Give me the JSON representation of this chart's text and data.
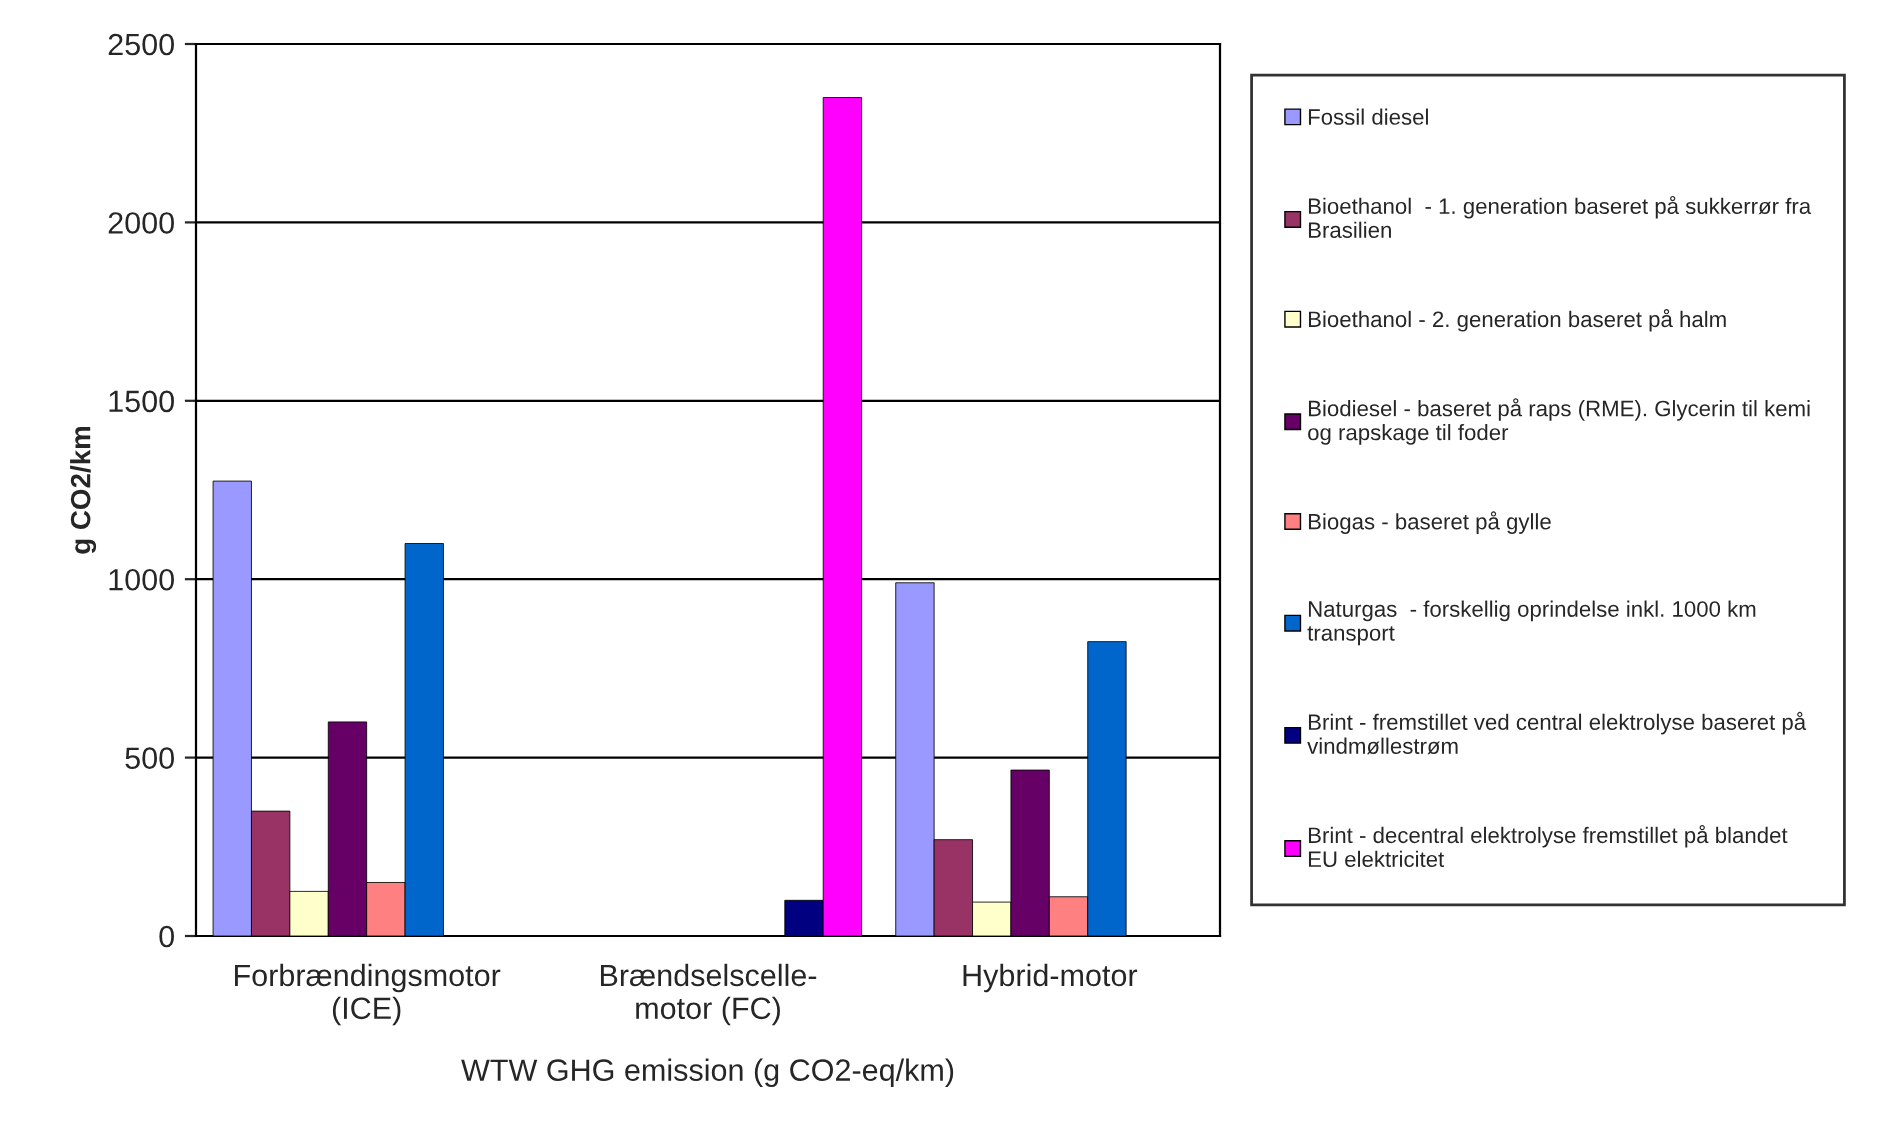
{
  "chart_data": {
    "type": "bar",
    "ylabel": "g CO2/km",
    "xlabel": "WTW GHG emission (g CO2-eq/km)",
    "categories": [
      "Forbrændingsmotor\n(ICE)",
      "Brændselscelle-\nmotor (FC)",
      "Hybrid-motor"
    ],
    "ylim": [
      0,
      2500
    ],
    "yticks": [
      0,
      500,
      1000,
      1500,
      2000,
      2500
    ],
    "grid": "y",
    "legend": "right",
    "series": [
      {
        "name": "Fossil diesel",
        "color": "#9999ff",
        "values": [
          1275,
          null,
          990
        ]
      },
      {
        "name": "Bioethanol  - 1. generation baseret på sukkerrør fra\nBrasilien",
        "color": "#993366",
        "values": [
          350,
          null,
          270
        ]
      },
      {
        "name": "Bioethanol - 2. generation baseret på halm",
        "color": "#ffffcc",
        "values": [
          125,
          null,
          95
        ]
      },
      {
        "name": "Biodiesel - baseret på raps (RME). Glycerin til kemi\nog rapskage til foder",
        "color": "#660066",
        "values": [
          600,
          null,
          465
        ]
      },
      {
        "name": "Biogas - baseret på gylle",
        "color": "#ff8080",
        "values": [
          150,
          null,
          110
        ]
      },
      {
        "name": "Naturgas  - forskellig oprindelse inkl. 1000 km\ntransport",
        "color": "#0066cc",
        "values": [
          1100,
          null,
          825
        ]
      },
      {
        "name": "Brint - fremstillet ved central elektrolyse baseret på\nvindmøllestrøm",
        "color": "#000080",
        "values": [
          null,
          100,
          null
        ]
      },
      {
        "name": "Brint - decentral elektrolyse fremstillet på blandet\nEU elektricitet",
        "color": "#ff00ff",
        "values": [
          null,
          2350,
          null
        ]
      }
    ]
  }
}
